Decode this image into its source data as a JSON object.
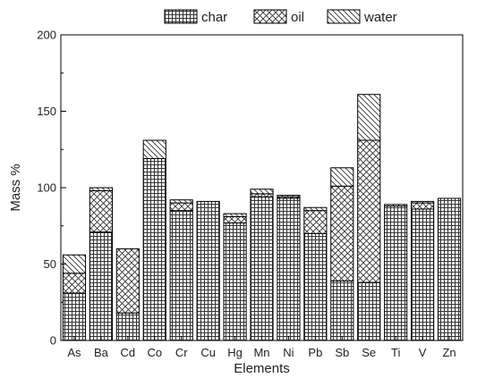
{
  "chart_data": {
    "type": "bar",
    "stacked": true,
    "categories": [
      "As",
      "Ba",
      "Cd",
      "Co",
      "Cr",
      "Cu",
      "Hg",
      "Mn",
      "Ni",
      "Pb",
      "Sb",
      "Se",
      "Ti",
      "V",
      "Zn"
    ],
    "series": [
      {
        "name": "char",
        "pattern": "grid",
        "values": [
          31,
          71,
          18,
          119,
          85,
          91,
          77,
          94,
          93,
          70,
          39,
          38,
          88,
          86,
          93
        ]
      },
      {
        "name": "oil",
        "pattern": "crosshatch",
        "values": [
          13,
          27,
          42,
          0,
          5,
          0,
          4,
          2,
          1,
          15,
          62,
          93,
          0,
          4,
          0
        ]
      },
      {
        "name": "water",
        "pattern": "diagonal",
        "values": [
          12,
          2,
          0,
          12,
          2,
          0,
          2,
          3,
          1,
          2,
          12,
          30,
          1,
          1,
          0
        ]
      }
    ],
    "xlabel": "Elements",
    "ylabel": "Mass %",
    "ylim": [
      0,
      200
    ],
    "yticks": [
      "0",
      "50",
      "100",
      "150",
      "200"
    ],
    "legend_position": "top",
    "grid": false
  }
}
